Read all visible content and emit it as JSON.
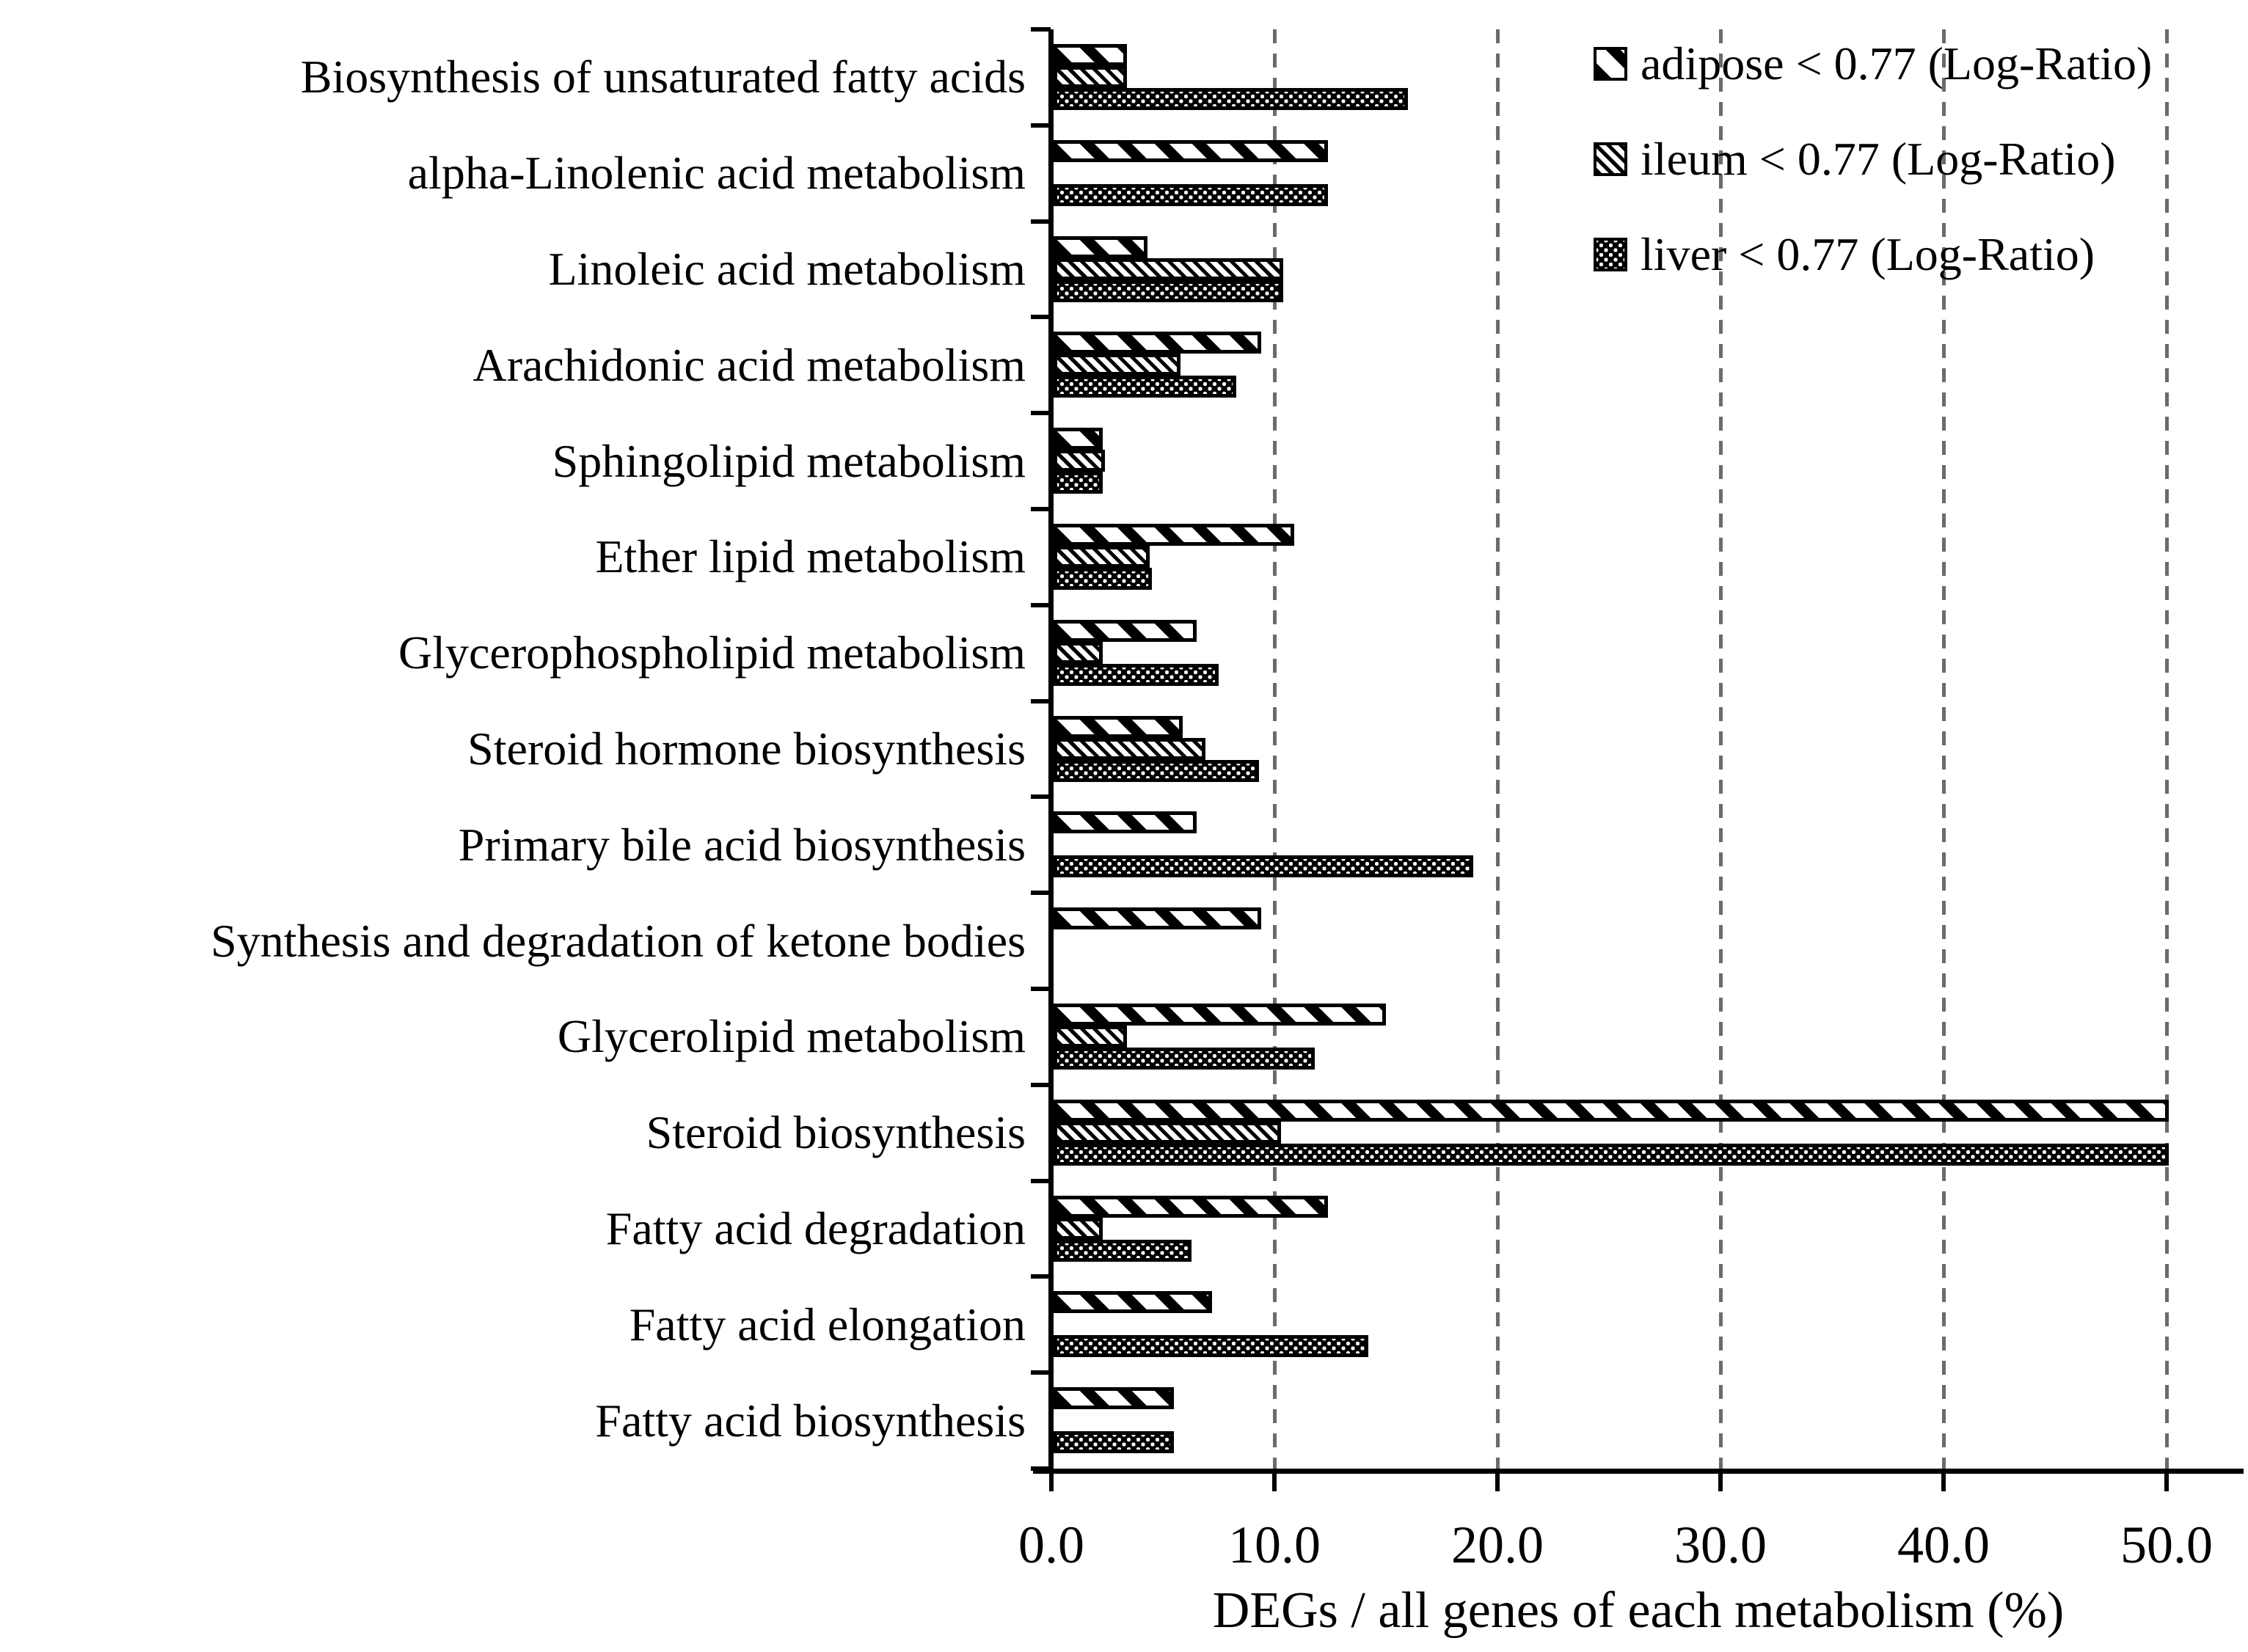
{
  "chart_data": {
    "type": "bar",
    "orientation": "horizontal",
    "title": "",
    "xlabel": "DEGs / all genes of each metabolism (%)",
    "ylabel": "",
    "xlim": [
      0.0,
      50.0
    ],
    "xticks": [
      0.0,
      10.0,
      20.0,
      30.0,
      40.0,
      50.0
    ],
    "xtick_labels": [
      "0.0",
      "10.0",
      "20.0",
      "30.0",
      "40.0",
      "50.0"
    ],
    "grid": "vertical dashed gridlines at each x tick except 0",
    "legend_position": "top-right inside plot",
    "categories": [
      "Biosynthesis of unsaturated fatty acids",
      "alpha-Linolenic acid metabolism",
      "Linoleic acid metabolism",
      "Arachidonic acid metabolism",
      "Sphingolipid metabolism",
      "Ether lipid metabolism",
      "Glycerophospholipid metabolism",
      "Steroid hormone biosynthesis",
      "Primary bile acid biosynthesis",
      "Synthesis and degradation of ketone bodies",
      "Glycerolipid metabolism",
      "Steroid biosynthesis",
      "Fatty acid degradation",
      "Fatty acid  elongation",
      "Fatty acid biosynthesis"
    ],
    "series": [
      {
        "name": "adipose < 0.77 (Log-Ratio)",
        "pattern": "bold-diagonal-stripes",
        "values": [
          3.3,
          12.3,
          4.2,
          9.3,
          2.2,
          10.8,
          6.4,
          5.8,
          6.4,
          9.3,
          14.9,
          50.0,
          12.3,
          7.1,
          5.4
        ]
      },
      {
        "name": "ileum < 0.77 (Log-Ratio)",
        "pattern": "fine-diagonal-hatch",
        "values": [
          3.3,
          0,
          10.3,
          5.7,
          2.3,
          4.3,
          2.2,
          6.8,
          0,
          0,
          3.3,
          10.2,
          2.2,
          0,
          0
        ]
      },
      {
        "name": "liver < 0.77 (Log-Ratio)",
        "pattern": "white-dots-on-black",
        "values": [
          15.9,
          12.3,
          10.3,
          8.2,
          2.2,
          4.4,
          7.4,
          9.2,
          18.8,
          0,
          11.7,
          50.0,
          6.2,
          14.1,
          5.4
        ]
      }
    ],
    "colors": {
      "bar_foreground": "#000000",
      "bar_background": "#ffffff",
      "gridline": "#6b6b6b",
      "text": "#000000"
    }
  }
}
